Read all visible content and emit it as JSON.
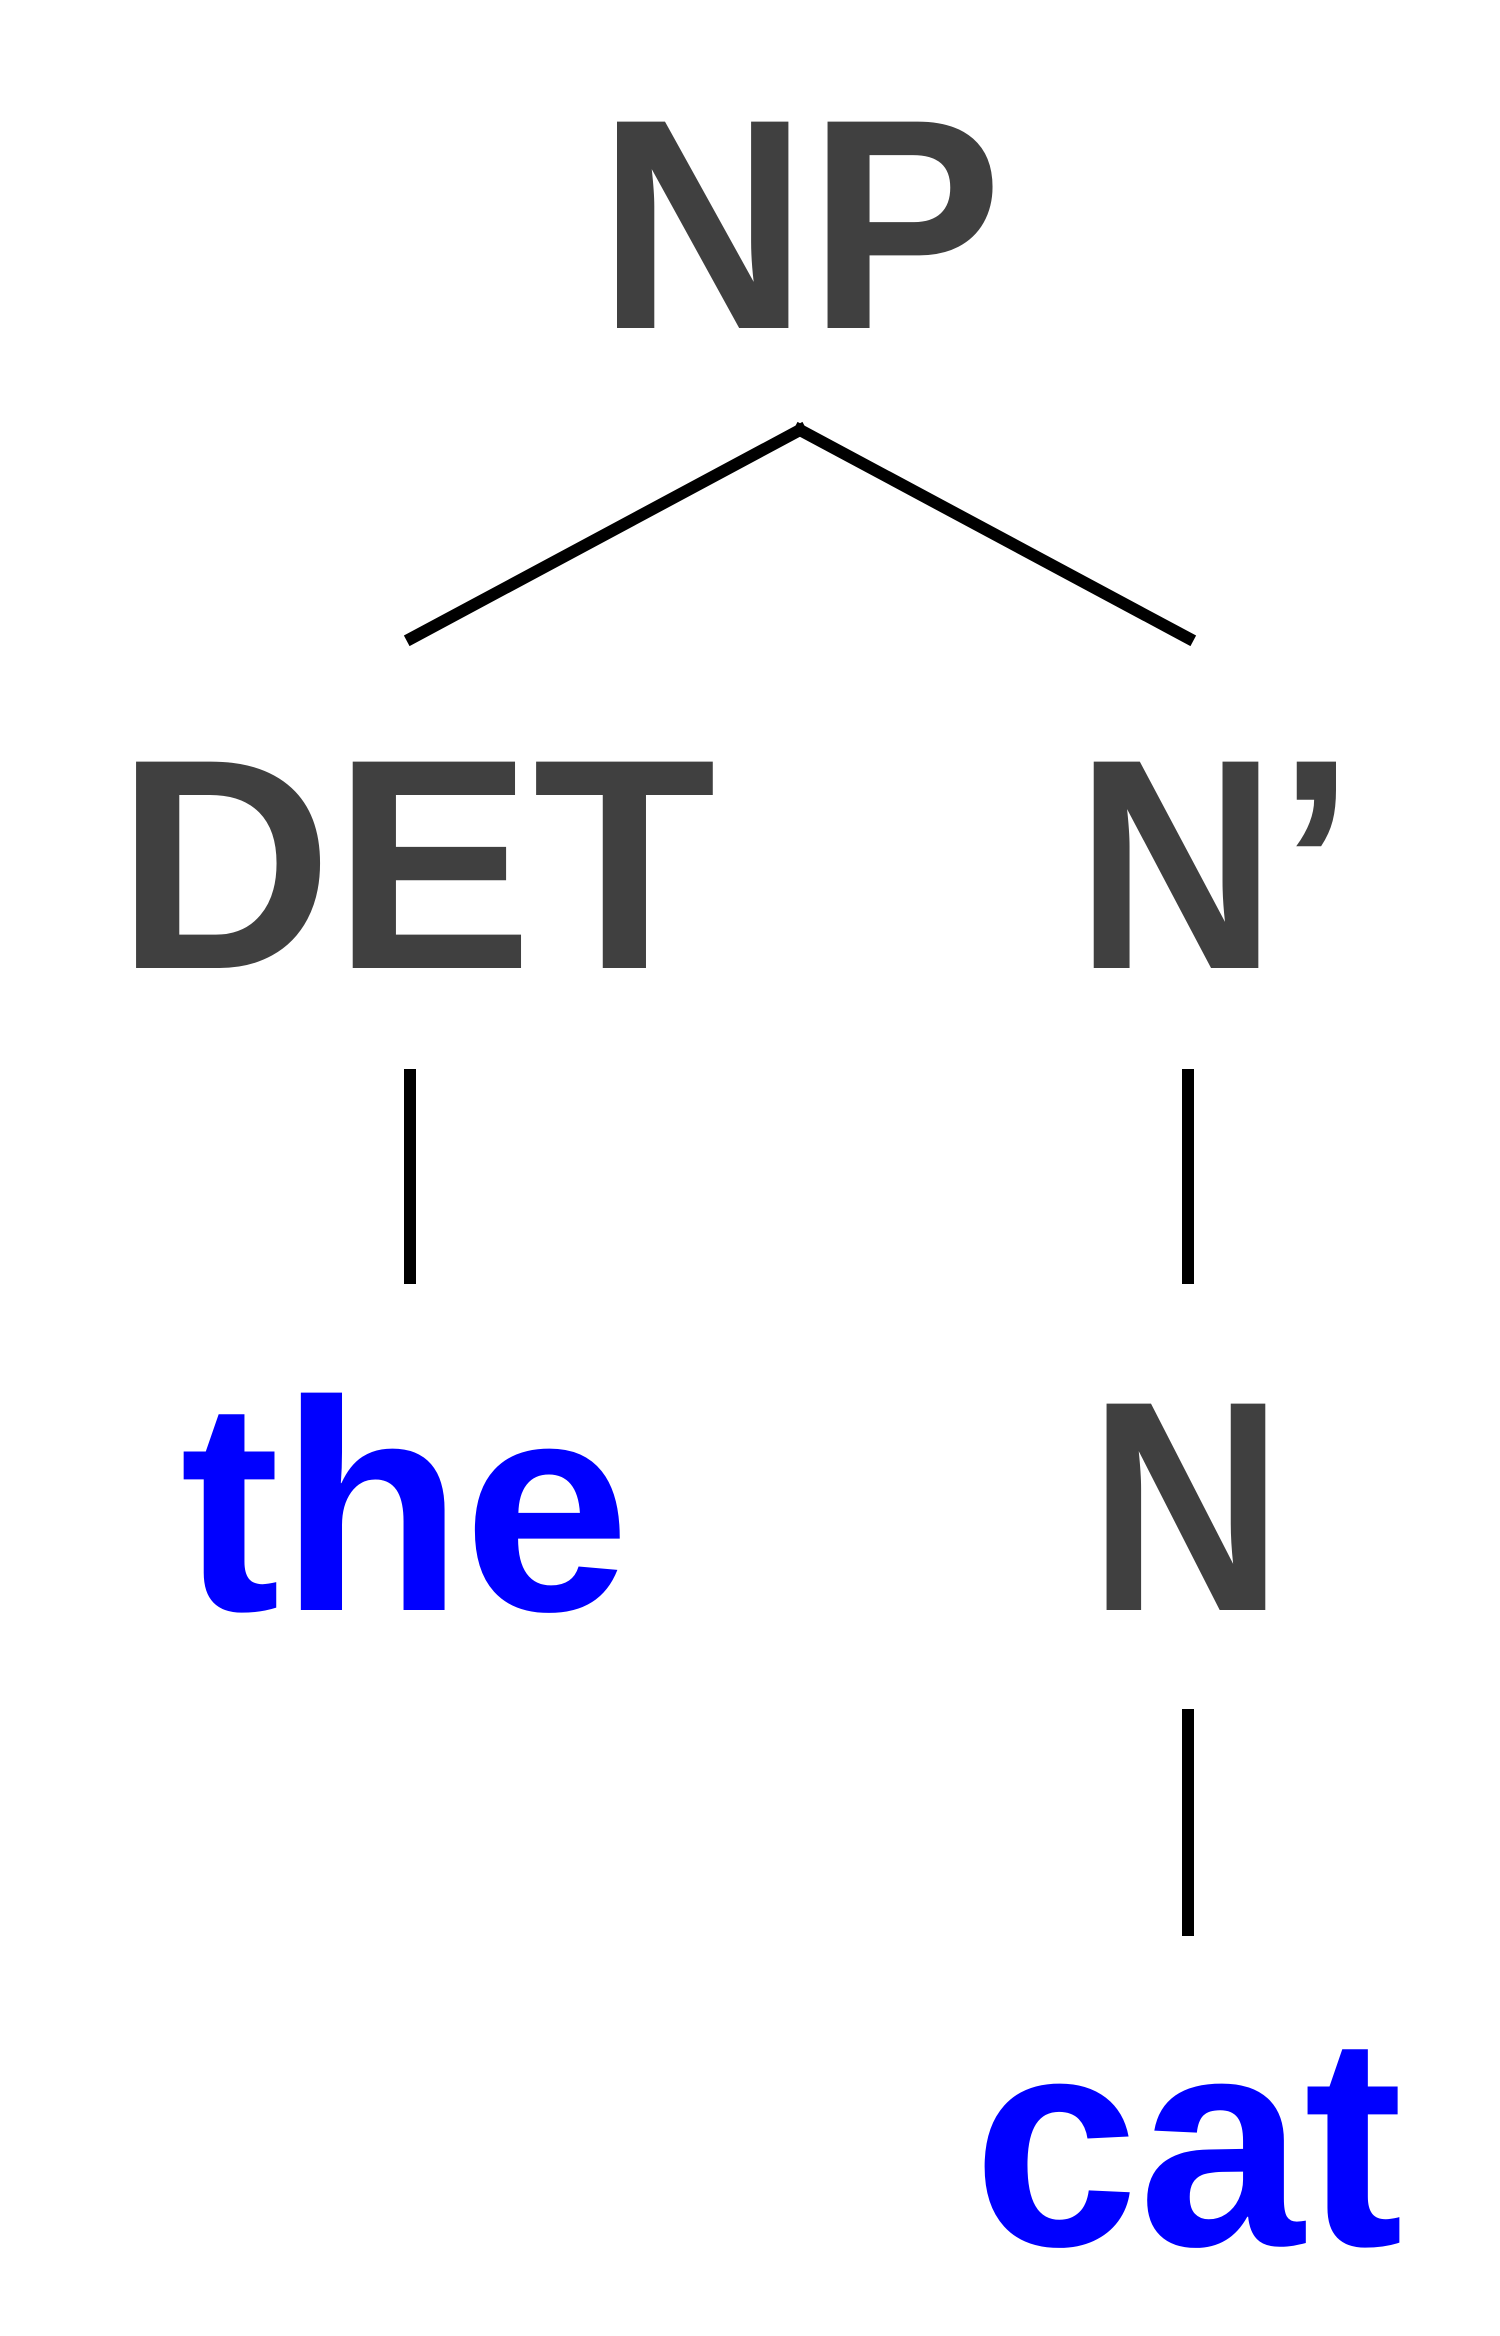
{
  "colors": {
    "category": "#404040",
    "word": "#0000ff",
    "branch": "#000000"
  },
  "tree": {
    "root": {
      "label": "NP"
    },
    "det": {
      "label": "DET"
    },
    "nbar": {
      "label": "N’"
    },
    "noun": {
      "label": "N"
    },
    "word_the": {
      "label": "the"
    },
    "word_cat": {
      "label": "cat"
    }
  }
}
